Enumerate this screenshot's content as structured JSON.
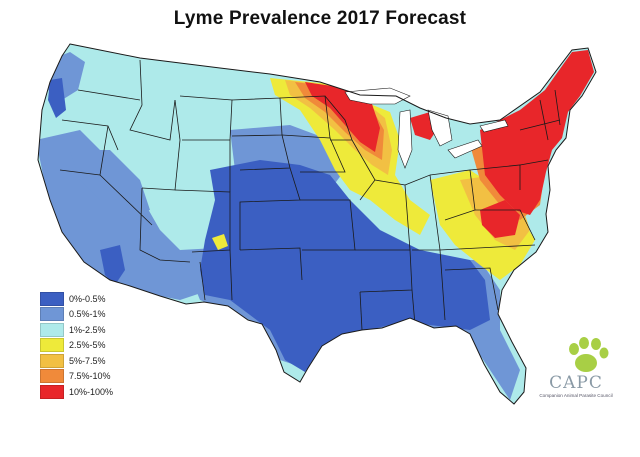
{
  "title": "Lyme Prevalence 2017 Forecast",
  "legend": {
    "items": [
      {
        "label": "0%-0.5%",
        "color": "#3b5fc2"
      },
      {
        "label": "0.5%-1%",
        "color": "#6f96d6"
      },
      {
        "label": "1%-2.5%",
        "color": "#aeeaea"
      },
      {
        "label": "2.5%-5%",
        "color": "#eeea3a"
      },
      {
        "label": "5%-7.5%",
        "color": "#f2c043"
      },
      {
        "label": "7.5%-10%",
        "color": "#f08a3a"
      },
      {
        "label": "10%-100%",
        "color": "#e8262a"
      }
    ]
  },
  "logo": {
    "acronym": "CAPC",
    "full_name": "Companion Animal Parasite Council"
  },
  "colors": {
    "border": "#1a1a1a",
    "paw": "#a8cf45"
  }
}
